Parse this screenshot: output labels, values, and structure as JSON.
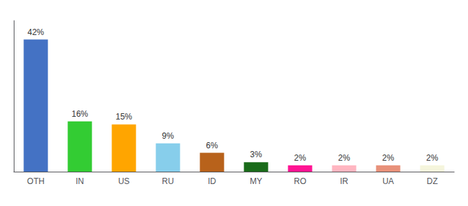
{
  "chart_data": {
    "type": "bar",
    "categories": [
      "OTH",
      "IN",
      "US",
      "RU",
      "ID",
      "MY",
      "RO",
      "IR",
      "UA",
      "DZ"
    ],
    "values": [
      42,
      16,
      15,
      9,
      6,
      3,
      2,
      2,
      2,
      2
    ],
    "value_labels": [
      "42%",
      "16%",
      "15%",
      "9%",
      "6%",
      "3%",
      "2%",
      "2%",
      "2%",
      "2%"
    ],
    "colors": [
      "#4472C4",
      "#33CC33",
      "#FFA500",
      "#87CEEB",
      "#B8621B",
      "#1A6B1A",
      "#FF1493",
      "#FFB6C1",
      "#E8917A",
      "#F5F5DC"
    ],
    "ylim": [
      0,
      48
    ],
    "grid": false,
    "data_labels": true,
    "tick_labels": "x"
  }
}
